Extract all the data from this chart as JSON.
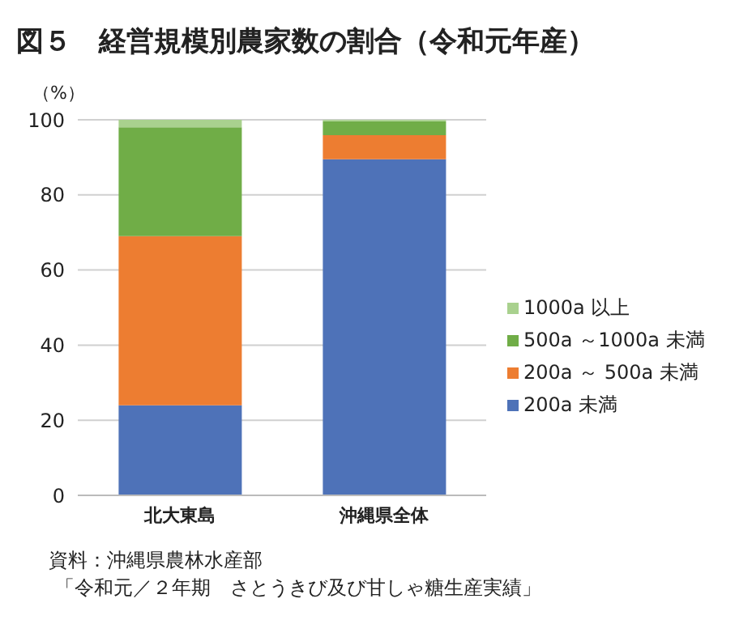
{
  "chart_data": {
    "type": "bar",
    "title": "図５　経営規模別農家数の割合（令和元年産）",
    "ylabel": "（%）",
    "categories": [
      "北大東島",
      "沖縄県全体"
    ],
    "stacked": true,
    "series": [
      {
        "name": "200a 未満",
        "color": "#4e72b8",
        "values": [
          24,
          89.5
        ]
      },
      {
        "name": "200a ～ 500a 未満",
        "color": "#ed7d31",
        "values": [
          45,
          6.4
        ]
      },
      {
        "name": "500a ～1000a 未満",
        "color": "#70ad47",
        "values": [
          29,
          3.7
        ]
      },
      {
        "name": "1000a 以上",
        "color": "#a9d18e",
        "values": [
          2,
          0.4
        ]
      }
    ],
    "ylim": [
      0,
      100
    ],
    "yticks": [
      0,
      20,
      40,
      60,
      80,
      100
    ],
    "grid": "y",
    "legend": "right",
    "annotations": [
      "資料：沖縄県農林水産部",
      "「令和元／２年期　さとうきび及び甘しゃ糖生産実績」"
    ]
  }
}
